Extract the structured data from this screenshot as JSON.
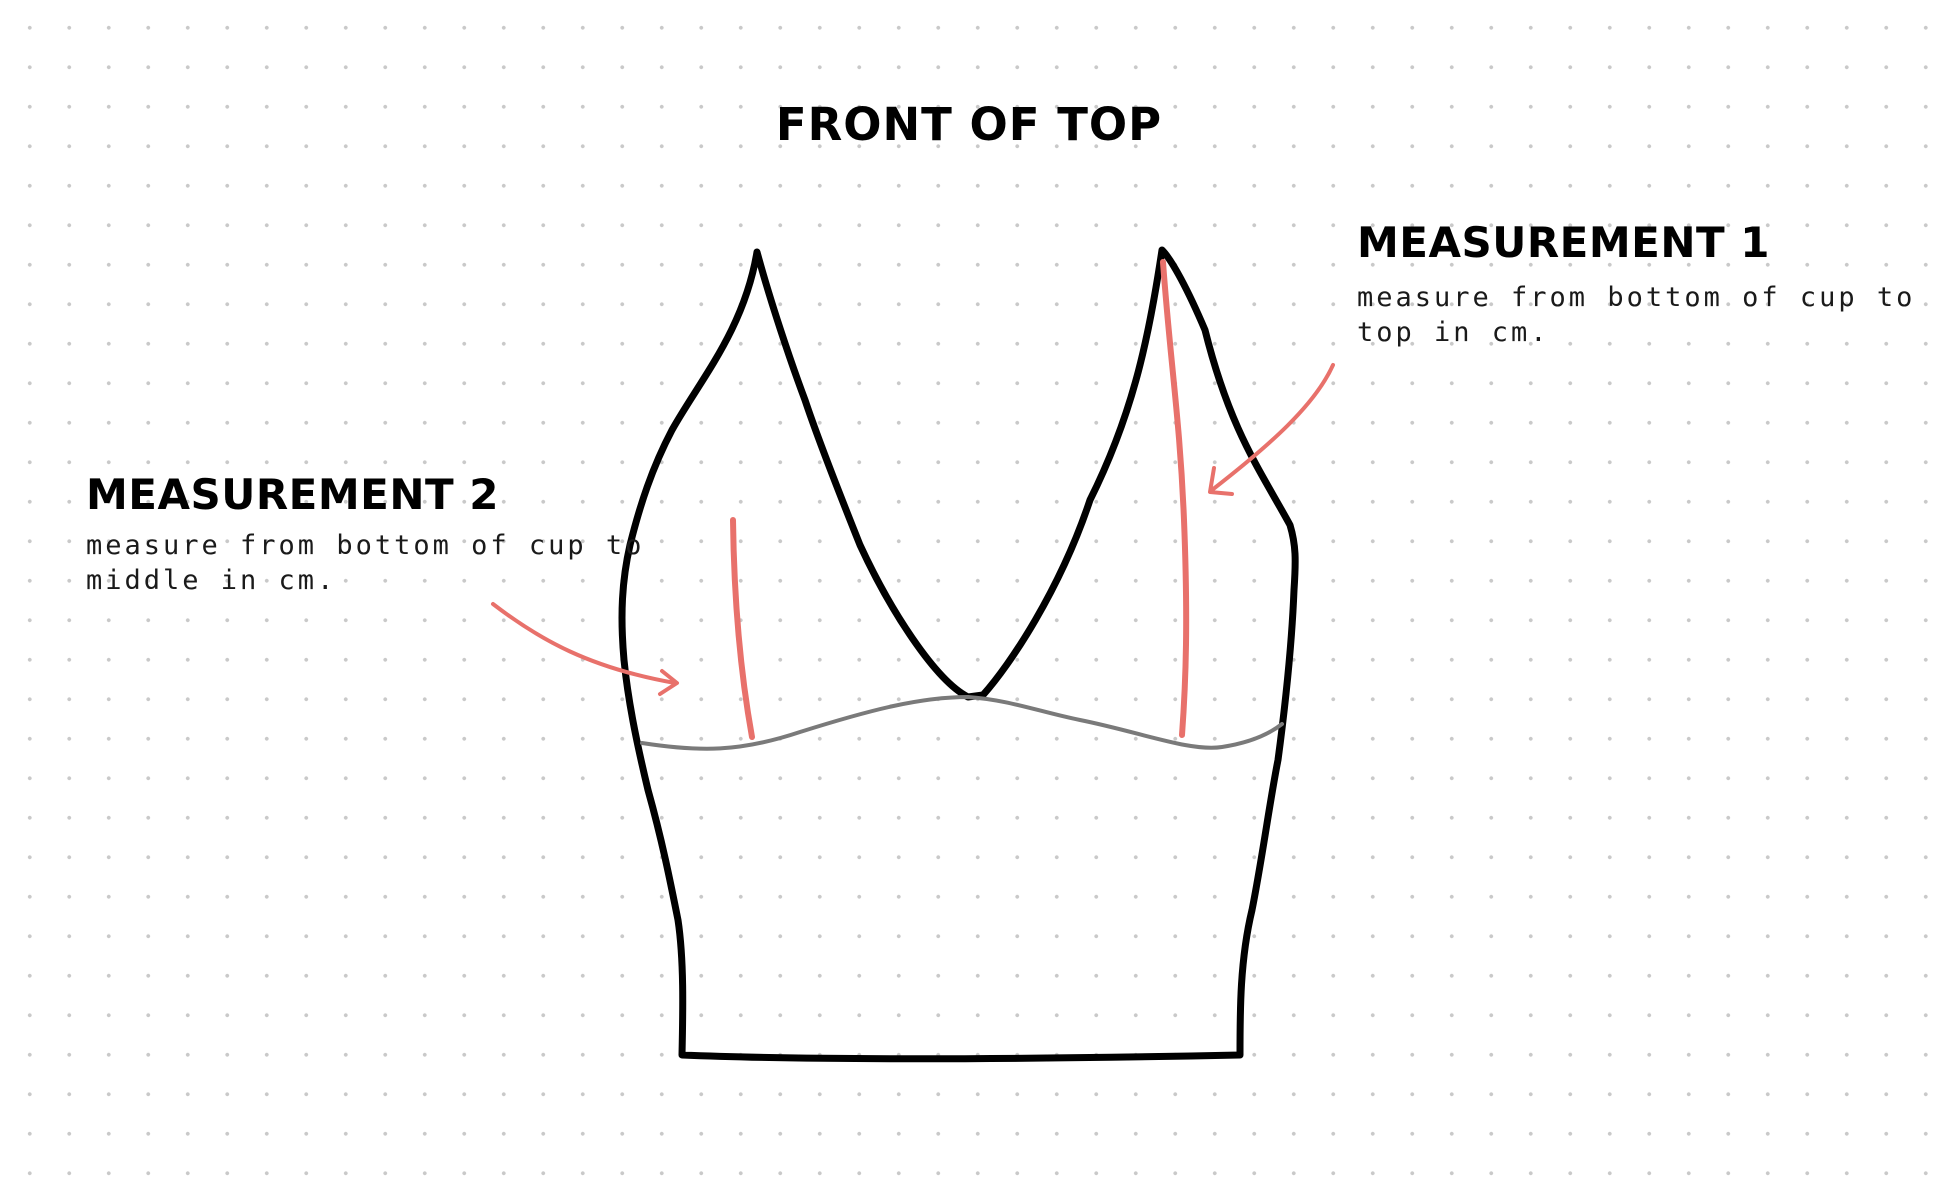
{
  "title": "FRONT OF TOP",
  "measurement_1": {
    "heading": "MEASUREMENT 1",
    "description": "measure from bottom of cup to top in cm."
  },
  "measurement_2": {
    "heading": "MEASUREMENT 2",
    "description": "measure from bottom of cup to middle in cm."
  },
  "colors": {
    "background": "#ffffff",
    "grid_dots": "#c9c9c9",
    "outline": "#000000",
    "cup_seam": "#7a7a7a",
    "measurement": "#e8716b"
  }
}
